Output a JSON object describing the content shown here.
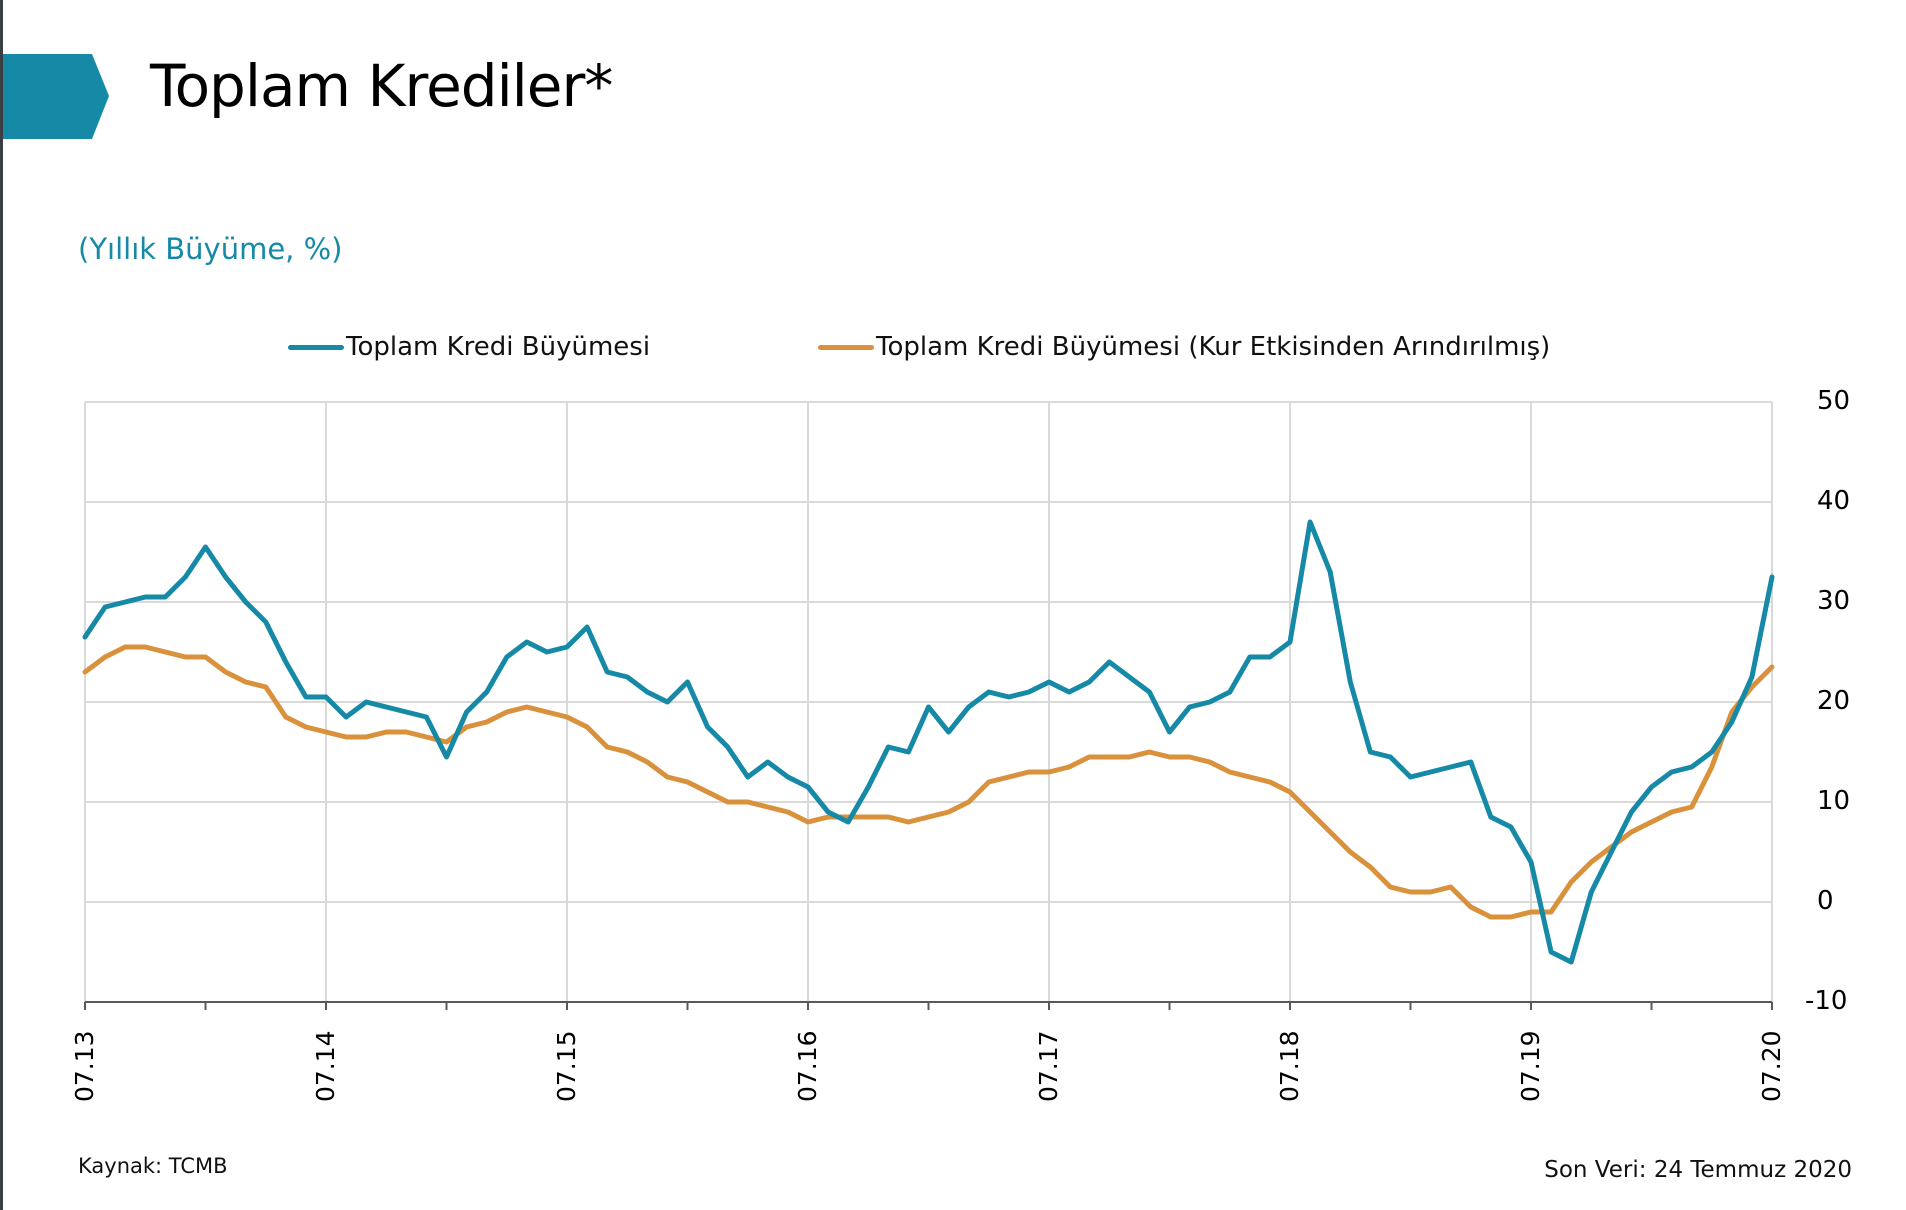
{
  "header": {
    "title": "Toplam Krediler*",
    "subtitle": "(Yıllık Büyüme, %)",
    "accent_color": "#1589a6"
  },
  "footer": {
    "source": "Kaynak: TCMB",
    "last_data": "Son Veri: 24 Temmuz 2020"
  },
  "chart_data": {
    "type": "line",
    "title": "Toplam Krediler*",
    "subtitle": "(Yıllık Büyüme, %)",
    "xlabel": "",
    "ylabel": "",
    "ylim": [
      -10,
      50
    ],
    "yticks": [
      50,
      40,
      30,
      20,
      10,
      0,
      -10
    ],
    "y_axis_side": "right",
    "xticks": [
      "07.13",
      "07.14",
      "07.15",
      "07.16",
      "07.17",
      "07.18",
      "07.19",
      "07.20"
    ],
    "x_frequency": "monthly",
    "x_start": "07.13",
    "x_end": "07.20",
    "grid": true,
    "legend_position": "top",
    "series": [
      {
        "name": "Toplam Kredi Büyümesi",
        "color": "#1589a6",
        "values": [
          26.5,
          29.5,
          30.0,
          30.5,
          30.5,
          32.5,
          35.5,
          32.5,
          30.0,
          28.0,
          24.0,
          20.5,
          20.5,
          18.5,
          20.0,
          19.5,
          19.0,
          18.5,
          14.5,
          19.0,
          21.0,
          24.5,
          26.0,
          25.0,
          25.5,
          27.5,
          23.0,
          22.5,
          21.0,
          20.0,
          22.0,
          17.5,
          15.5,
          12.5,
          14.0,
          12.5,
          11.5,
          9.0,
          8.0,
          11.5,
          15.5,
          15.0,
          19.5,
          17.0,
          19.5,
          21.0,
          20.5,
          21.0,
          22.0,
          21.0,
          22.0,
          24.0,
          22.5,
          21.0,
          17.0,
          19.5,
          20.0,
          21.0,
          24.5,
          24.5,
          26.0,
          38.0,
          33.0,
          22.0,
          15.0,
          14.5,
          12.5,
          13.0,
          13.5,
          14.0,
          8.5,
          7.5,
          4.0,
          -5.0,
          -6.0,
          1.0,
          5.0,
          9.0,
          11.5,
          13.0,
          13.5,
          15.0,
          18.0,
          22.5,
          32.5
        ]
      },
      {
        "name": "Toplam Kredi Büyümesi (Kur Etkisinden Arındırılmış)",
        "color": "#d9913c",
        "values": [
          23.0,
          24.5,
          25.5,
          25.5,
          25.0,
          24.5,
          24.5,
          23.0,
          22.0,
          21.5,
          18.5,
          17.5,
          17.0,
          16.5,
          16.5,
          17.0,
          17.0,
          16.5,
          16.0,
          17.5,
          18.0,
          19.0,
          19.5,
          19.0,
          18.5,
          17.5,
          15.5,
          15.0,
          14.0,
          12.5,
          12.0,
          11.0,
          10.0,
          10.0,
          9.5,
          9.0,
          8.0,
          8.5,
          8.5,
          8.5,
          8.5,
          8.0,
          8.5,
          9.0,
          10.0,
          12.0,
          12.5,
          13.0,
          13.0,
          13.5,
          14.5,
          14.5,
          14.5,
          15.0,
          14.5,
          14.5,
          14.0,
          13.0,
          12.5,
          12.0,
          11.0,
          9.0,
          7.0,
          5.0,
          3.5,
          1.5,
          1.0,
          1.0,
          1.5,
          -0.5,
          -1.5,
          -1.5,
          -1.0,
          -1.0,
          2.0,
          4.0,
          5.5,
          7.0,
          8.0,
          9.0,
          9.5,
          13.5,
          19.0,
          21.5,
          23.5
        ]
      }
    ]
  }
}
